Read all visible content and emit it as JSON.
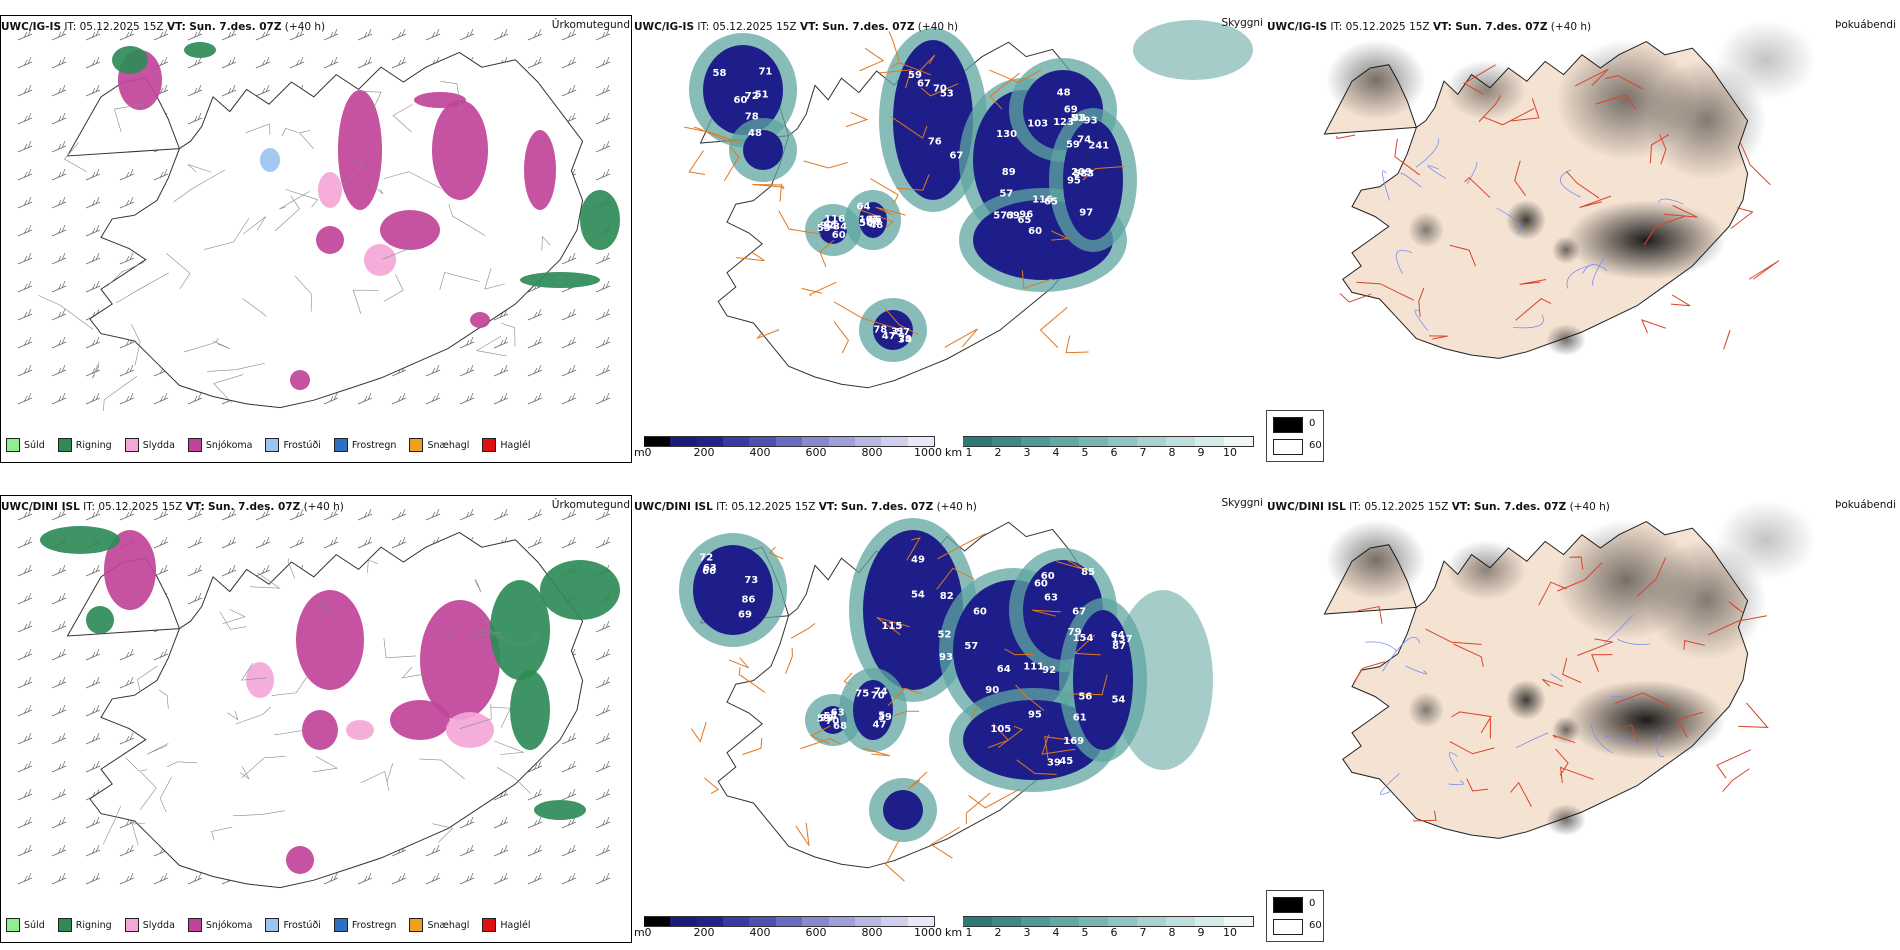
{
  "rows": [
    {
      "model": "UWC/IG-IS",
      "it_label": "IT:",
      "issue_time": "05.12.2025 15Z",
      "vt_label": "VT:",
      "valid_time": "Sun. 7.des. 07Z",
      "lead": "(+40 h)",
      "panel1_label": "Úrkomutegund",
      "panel2_label": "Skyggni",
      "panel3_label": "Þokuábendi",
      "snow_depth_numbers": [
        "72",
        "71",
        "51",
        "78",
        "58",
        "60",
        "76",
        "67",
        "59",
        "70",
        "53",
        "67",
        "57",
        "65",
        "130",
        "116",
        "103",
        "89",
        "123",
        "48",
        "51",
        "83",
        "69",
        "93",
        "97",
        "60",
        "96",
        "65",
        "69",
        "573",
        "209",
        "74",
        "241",
        "59",
        "95",
        "583",
        "55",
        "60",
        "94",
        "116",
        "34",
        "92",
        "64",
        "66",
        "56",
        "48",
        "105",
        "60",
        "57",
        "47",
        "31",
        "34",
        "78",
        "79",
        "48"
      ],
      "visibility_numbers": []
    },
    {
      "model": "UWC/DINI ISL",
      "it_label": "IT:",
      "issue_time": "05.12.2025 15Z",
      "vt_label": "VT:",
      "valid_time": "Sun. 7.des. 07Z",
      "lead": "(+40 h)",
      "panel1_label": "Úrkomutegund",
      "panel2_label": "Skyggni",
      "panel3_label": "Þokuábendi",
      "snow_depth_numbers": [
        "86",
        "66",
        "63",
        "73",
        "69",
        "72",
        "82",
        "54",
        "52",
        "49",
        "93",
        "115",
        "92",
        "90",
        "60",
        "64",
        "111",
        "57",
        "63",
        "67",
        "60",
        "85",
        "79",
        "60",
        "39",
        "45",
        "61",
        "169",
        "95",
        "105",
        "87",
        "56",
        "154",
        "137",
        "64",
        "54",
        "70",
        "90",
        "59",
        "63",
        "54",
        "68",
        "75",
        "74",
        "70",
        "39",
        "47",
        "5"
      ],
      "visibility_numbers": []
    }
  ],
  "precip_legend": [
    {
      "label": "Súld",
      "color": "#90ee90"
    },
    {
      "label": "Rigning",
      "color": "#2e8b57"
    },
    {
      "label": "Slydda",
      "color": "#f4a6d7"
    },
    {
      "label": "Snjókoma",
      "color": "#c0449a"
    },
    {
      "label": "Frostúði",
      "color": "#9cc3f0"
    },
    {
      "label": "Frostregn",
      "color": "#2f6fc0"
    },
    {
      "label": "Snæhagl",
      "color": "#f0a020"
    },
    {
      "label": "Haglél",
      "color": "#e01010"
    }
  ],
  "snow_scale": {
    "unit": "m",
    "ticks": [
      "0",
      "200",
      "400",
      "600",
      "800",
      "1000"
    ],
    "colors": [
      "#000000",
      "#1a1a7a",
      "#22228c",
      "#3a3aa0",
      "#5050b0",
      "#6a6ac0",
      "#8888cc",
      "#a0a0d8",
      "#b8b8e4",
      "#d0d0ee",
      "#e8e8f6"
    ]
  },
  "vis_scale": {
    "unit": "km",
    "ticks": [
      "1",
      "2",
      "3",
      "4",
      "5",
      "6",
      "7",
      "8",
      "9",
      "10"
    ],
    "colors": [
      "#2a7a78",
      "#3a8a88",
      "#4e9a97",
      "#62a8a5",
      "#78b6b3",
      "#8ec4c1",
      "#a6d2cf",
      "#bedfdd",
      "#d6ecea",
      "#eef7f6"
    ]
  },
  "fog_legend": [
    {
      "label": "0",
      "color": "#000000"
    },
    {
      "label": "60",
      "color": "#ffffff"
    }
  ]
}
